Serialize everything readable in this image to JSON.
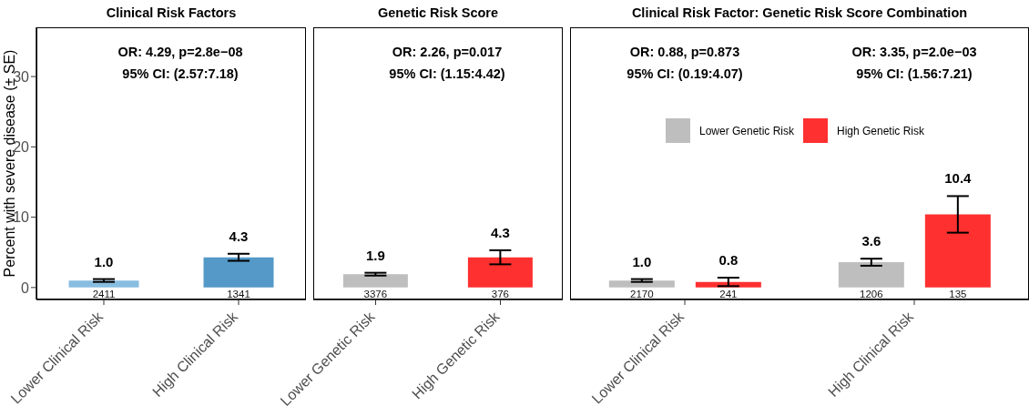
{
  "chart_data": [
    {
      "type": "bar",
      "title": "Clinical Risk Factors",
      "ylabel": "Percent with severe disease (± SE)",
      "categories": [
        "Lower Clinical Risk",
        "High Clinical Risk"
      ],
      "series": [
        {
          "colors": [
            "#88bde0",
            "#5499c7"
          ],
          "values": [
            1.0,
            4.3
          ],
          "errors": [
            0.2,
            0.5
          ],
          "value_labels": [
            "1.0",
            "4.3"
          ]
        }
      ],
      "ylim": [
        -1.7,
        37
      ],
      "yticks": [
        0,
        10,
        20,
        30
      ],
      "grid": false,
      "legend": false,
      "annotations": [
        "OR: 4.29, p=2.8e−08\n95% CI: (2.57:7.18)",
        "2411",
        "1341"
      ]
    },
    {
      "type": "bar",
      "title": "Genetic Risk Score",
      "categories": [
        "Lower Genetic Risk",
        "High Genetic Risk"
      ],
      "series": [
        {
          "colors": [
            "#bebebe",
            "#ff3030"
          ],
          "values": [
            1.9,
            4.3
          ],
          "errors": [
            0.2,
            1.0
          ],
          "value_labels": [
            "1.9",
            "4.3"
          ]
        }
      ],
      "ylim": [
        -1.7,
        37
      ],
      "tick_labels": "x",
      "grid": false,
      "legend": false,
      "annotations": [
        "OR: 2.26, p=0.017\n95% CI: (1.15:4.42)",
        "3376",
        "376"
      ]
    },
    {
      "type": "bar",
      "title": "Clinical Risk Factor: Genetic Risk Score Combination",
      "categories": [
        "Lower Clinical Risk",
        "High Clinical Risk"
      ],
      "series": [
        {
          "name": "Lower Genetic Risk",
          "color": "#bebebe",
          "values": [
            1.0,
            3.6
          ],
          "errors": [
            0.2,
            0.5
          ],
          "value_labels": [
            "1.0",
            "3.6"
          ]
        },
        {
          "name": "High Genetic Risk",
          "color": "#ff3030",
          "values": [
            0.8,
            10.4
          ],
          "errors": [
            0.6,
            2.6
          ],
          "value_labels": [
            "0.8",
            "10.4"
          ]
        }
      ],
      "ylim": [
        -1.7,
        37
      ],
      "tick_labels": "x",
      "grid": false,
      "legend": "top",
      "annotations": [
        "OR: 0.88, p=0.873\n95% CI: (0.19:4.07)",
        "OR: 3.35, p=2.0e−03\n95% CI: (1.56:7.21)",
        "2170",
        "241",
        "1206",
        "135"
      ]
    }
  ]
}
